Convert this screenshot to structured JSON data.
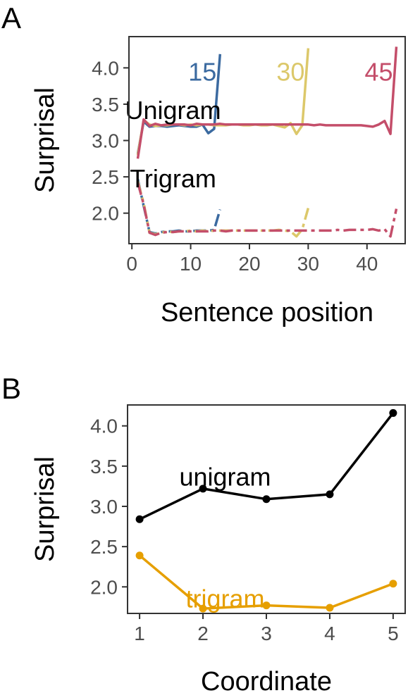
{
  "chart_data": [
    {
      "panel": "A",
      "type": "line",
      "xlabel": "Sentence position",
      "ylabel": "Surprisal",
      "xlim": [
        -0.5,
        46.5
      ],
      "ylim": [
        1.58,
        4.43
      ],
      "xticks": [
        0,
        10,
        20,
        30,
        40
      ],
      "yticks": [
        2.0,
        2.5,
        3.0,
        3.5,
        4.0
      ],
      "grid": false,
      "annotations": [
        {
          "text": "15",
          "x": 12,
          "y": 3.95,
          "color": "#3b6aa0"
        },
        {
          "text": "30",
          "x": 27,
          "y": 3.95,
          "color": "#dcc86a"
        },
        {
          "text": "45",
          "x": 42,
          "y": 3.95,
          "color": "#c44e6a"
        },
        {
          "text": "Unigram",
          "x": 7,
          "y": 3.42,
          "color": "#000000"
        },
        {
          "text": "Trigram",
          "x": 7,
          "y": 2.48,
          "color": "#000000"
        }
      ],
      "series": [
        {
          "model": "unigram",
          "length": "15",
          "color": "#3b6aa0",
          "dash": "solid",
          "x": [
            1,
            2,
            3,
            4,
            5,
            6,
            7,
            8,
            9,
            10,
            11,
            12,
            13,
            14,
            15
          ],
          "y": [
            2.82,
            3.26,
            3.19,
            3.2,
            3.2,
            3.19,
            3.2,
            3.21,
            3.2,
            3.19,
            3.19,
            3.22,
            3.1,
            3.16,
            4.19
          ]
        },
        {
          "model": "unigram",
          "length": "30",
          "color": "#dcc86a",
          "dash": "solid",
          "x": [
            1,
            2,
            3,
            4,
            5,
            6,
            7,
            8,
            9,
            10,
            11,
            12,
            13,
            14,
            15,
            16,
            17,
            18,
            19,
            20,
            21,
            22,
            23,
            24,
            25,
            26,
            27,
            28,
            29,
            30
          ],
          "y": [
            2.8,
            3.28,
            3.22,
            3.2,
            3.21,
            3.21,
            3.22,
            3.22,
            3.21,
            3.22,
            3.21,
            3.22,
            3.22,
            3.21,
            3.21,
            3.21,
            3.22,
            3.22,
            3.21,
            3.21,
            3.22,
            3.21,
            3.21,
            3.22,
            3.2,
            3.18,
            3.24,
            3.09,
            3.21,
            4.27
          ]
        },
        {
          "model": "unigram",
          "length": "45",
          "color": "#c44e6a",
          "dash": "solid",
          "x": [
            1,
            2,
            3,
            4,
            5,
            6,
            7,
            8,
            9,
            10,
            11,
            12,
            13,
            14,
            15,
            16,
            17,
            18,
            19,
            20,
            21,
            22,
            23,
            24,
            25,
            26,
            27,
            28,
            29,
            30,
            31,
            32,
            33,
            34,
            35,
            36,
            37,
            38,
            39,
            40,
            41,
            42,
            43,
            44,
            45
          ],
          "y": [
            2.75,
            3.29,
            3.2,
            3.23,
            3.21,
            3.22,
            3.22,
            3.22,
            3.22,
            3.21,
            3.23,
            3.22,
            3.22,
            3.22,
            3.23,
            3.22,
            3.22,
            3.22,
            3.22,
            3.22,
            3.22,
            3.22,
            3.22,
            3.22,
            3.22,
            3.22,
            3.22,
            3.22,
            3.22,
            3.22,
            3.21,
            3.22,
            3.21,
            3.21,
            3.21,
            3.21,
            3.21,
            3.21,
            3.21,
            3.2,
            3.19,
            3.22,
            3.27,
            3.09,
            4.29
          ]
        },
        {
          "model": "trigram",
          "length": "15",
          "color": "#3b6aa0",
          "dash": "dash",
          "x": [
            1,
            2,
            3,
            4,
            5,
            6,
            7,
            8,
            9,
            10,
            11,
            12,
            13,
            14,
            15
          ],
          "y": [
            2.47,
            2.1,
            1.74,
            1.72,
            1.74,
            1.75,
            1.75,
            1.76,
            1.75,
            1.75,
            1.76,
            1.76,
            1.76,
            1.77,
            2.05
          ]
        },
        {
          "model": "trigram",
          "length": "30",
          "color": "#dcc86a",
          "dash": "dash",
          "x": [
            1,
            2,
            3,
            4,
            5,
            6,
            7,
            8,
            9,
            10,
            11,
            12,
            13,
            14,
            15,
            16,
            17,
            18,
            19,
            20,
            21,
            22,
            23,
            24,
            25,
            26,
            27,
            28,
            29,
            30
          ],
          "y": [
            2.44,
            2.14,
            1.73,
            1.71,
            1.73,
            1.75,
            1.74,
            1.75,
            1.75,
            1.76,
            1.75,
            1.76,
            1.75,
            1.76,
            1.76,
            1.76,
            1.76,
            1.76,
            1.76,
            1.76,
            1.76,
            1.76,
            1.76,
            1.76,
            1.77,
            1.76,
            1.75,
            1.68,
            1.78,
            2.07
          ]
        },
        {
          "model": "trigram",
          "length": "45",
          "color": "#c44e6a",
          "dash": "dash",
          "x": [
            1,
            2,
            3,
            4,
            5,
            6,
            7,
            8,
            9,
            10,
            11,
            12,
            13,
            14,
            15,
            16,
            17,
            18,
            19,
            20,
            21,
            22,
            23,
            24,
            25,
            26,
            27,
            28,
            29,
            30,
            31,
            32,
            33,
            34,
            35,
            36,
            37,
            38,
            39,
            40,
            41,
            42,
            43,
            44,
            45
          ],
          "y": [
            2.42,
            2.12,
            1.73,
            1.7,
            1.73,
            1.74,
            1.74,
            1.75,
            1.75,
            1.75,
            1.75,
            1.75,
            1.75,
            1.76,
            1.76,
            1.75,
            1.76,
            1.76,
            1.76,
            1.76,
            1.76,
            1.76,
            1.76,
            1.76,
            1.76,
            1.76,
            1.76,
            1.76,
            1.76,
            1.76,
            1.76,
            1.76,
            1.76,
            1.76,
            1.77,
            1.76,
            1.77,
            1.77,
            1.77,
            1.77,
            1.78,
            1.76,
            1.78,
            1.68,
            2.06
          ]
        }
      ]
    },
    {
      "panel": "B",
      "type": "line",
      "xlabel": "Coordinate",
      "ylabel": "Surprisal",
      "xlim": [
        0.81,
        5.19
      ],
      "ylim": [
        1.67,
        4.26
      ],
      "xticks": [
        1,
        2,
        3,
        4,
        5
      ],
      "yticks": [
        2.0,
        2.5,
        3.0,
        3.5,
        4.0
      ],
      "grid": false,
      "annotations": [
        {
          "text": "unigram",
          "x": 2.35,
          "y": 3.37,
          "color": "#000000"
        },
        {
          "text": "trigram",
          "x": 2.35,
          "y": 1.86,
          "color": "#e69f00"
        }
      ],
      "series": [
        {
          "model": "unigram",
          "color": "#000000",
          "x": [
            1,
            2,
            3,
            4,
            5
          ],
          "y": [
            2.84,
            3.22,
            3.09,
            3.15,
            4.16
          ]
        },
        {
          "model": "trigram",
          "color": "#e69f00",
          "x": [
            1,
            2,
            3,
            4,
            5
          ],
          "y": [
            2.39,
            1.73,
            1.77,
            1.74,
            2.04
          ]
        }
      ]
    }
  ]
}
